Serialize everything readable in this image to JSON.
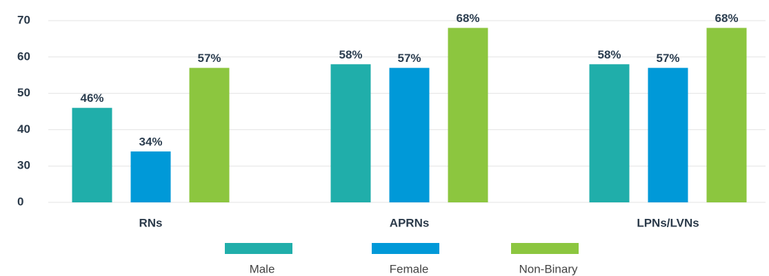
{
  "chart_data": {
    "type": "bar",
    "categories": [
      "RNs",
      "APRNs",
      "LPNs/LVNs"
    ],
    "series": [
      {
        "name": "Male",
        "color": "#20aeaa",
        "values": [
          46,
          58,
          58
        ],
        "value_labels": [
          "46%",
          "58%",
          "58%"
        ]
      },
      {
        "name": "Female",
        "color": "#0099d8",
        "values": [
          34,
          57,
          57
        ],
        "value_labels": [
          "34%",
          "57%",
          "57%"
        ]
      },
      {
        "name": "Non-Binary",
        "color": "#8cc63f",
        "values": [
          57,
          68,
          68
        ],
        "value_labels": [
          "57%",
          "68%",
          "68%"
        ]
      }
    ],
    "ylim": [
      20,
      72
    ],
    "yticks": [
      {
        "value": 20,
        "label": "0"
      },
      30,
      40,
      50,
      60,
      70
    ],
    "grid": true,
    "legend": "bottom"
  }
}
